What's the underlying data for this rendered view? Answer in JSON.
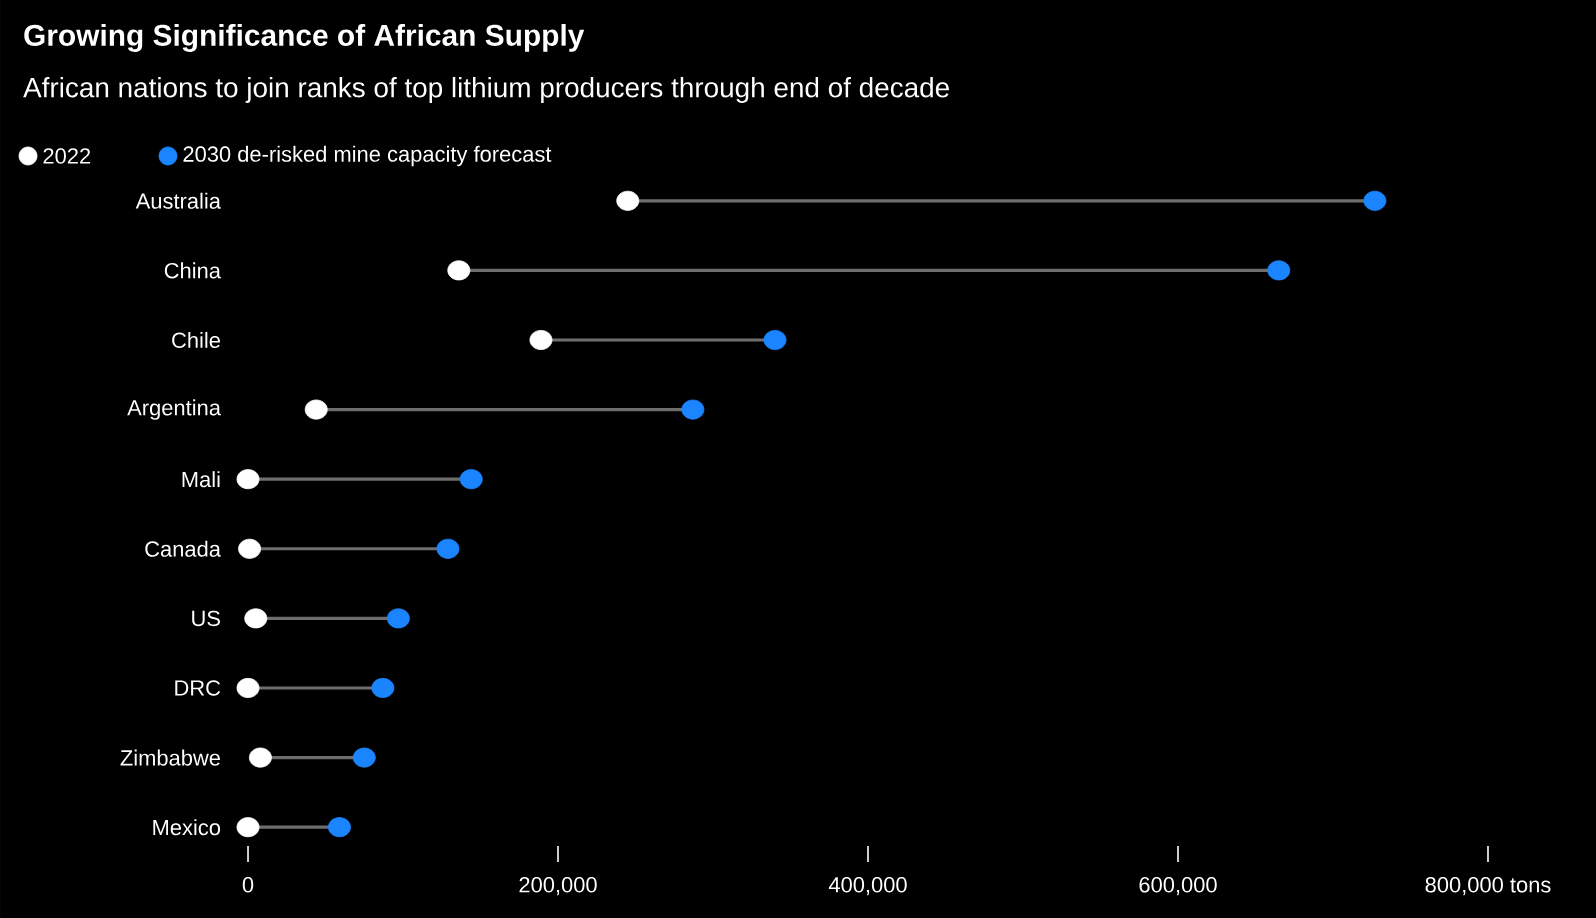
{
  "chart_data": {
    "type": "scatter",
    "title": "Growing Significance of African Supply",
    "subtitle": "African nations to join ranks of top lithium producers through end of decade",
    "orientation": "horizontal",
    "marker": "circle",
    "legend": "top left",
    "grid": false,
    "categories": [
      "Australia",
      "China",
      "Chile",
      "Argentina",
      "Mali",
      "Canada",
      "US",
      "DRC",
      "Zimbabwe",
      "Mexico"
    ],
    "series": [
      {
        "name": "2022",
        "color": "#ffffff",
        "values": [
          245000,
          136000,
          189000,
          44000,
          0,
          1000,
          5000,
          0,
          8000,
          0
        ]
      },
      {
        "name": "2030 de-risked mine capacity forecast",
        "color": "#1a85ff",
        "values": [
          727000,
          665000,
          340000,
          287000,
          144000,
          129000,
          97000,
          87000,
          75000,
          59000
        ]
      }
    ],
    "xlim": [
      0,
      800000
    ],
    "xticks": [
      0,
      {
        "value": 200000,
        "label": "200,000"
      },
      {
        "value": 400000,
        "label": "400,000"
      },
      {
        "value": 600000,
        "label": "600,000"
      },
      {
        "value": 800000,
        "label": "800,000 tons"
      }
    ]
  }
}
